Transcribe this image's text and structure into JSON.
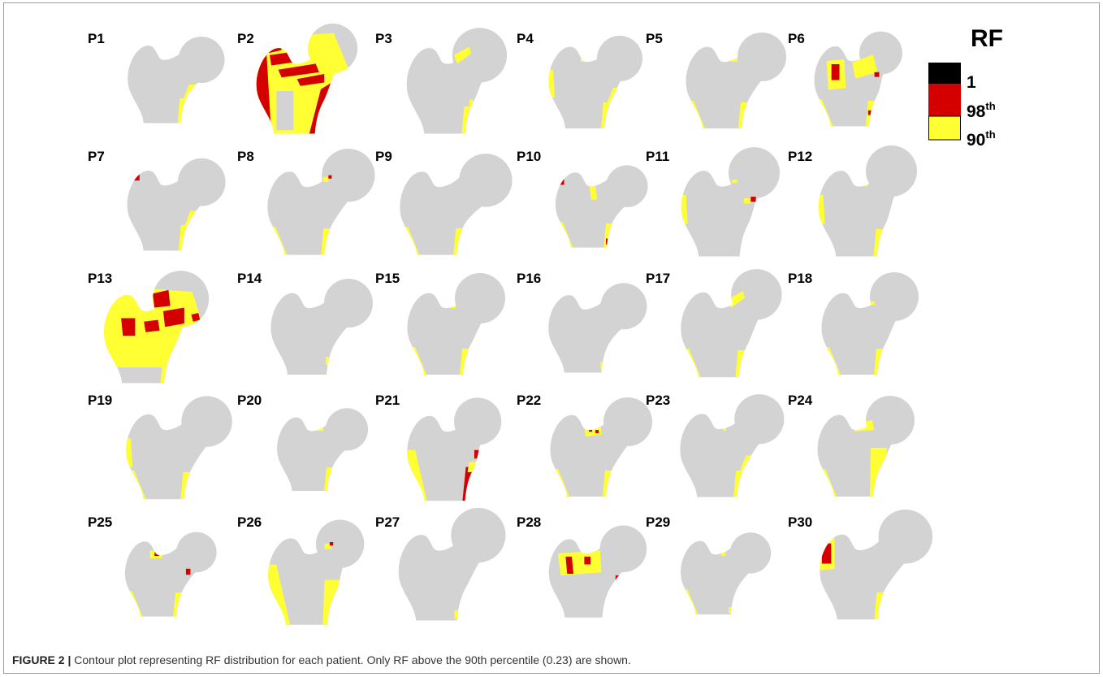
{
  "figure": {
    "panels": [
      {
        "label": "P1"
      },
      {
        "label": "P2"
      },
      {
        "label": "P3"
      },
      {
        "label": "P4"
      },
      {
        "label": "P5"
      },
      {
        "label": "P6"
      },
      {
        "label": "P7"
      },
      {
        "label": "P8"
      },
      {
        "label": "P9"
      },
      {
        "label": "P10"
      },
      {
        "label": "P11"
      },
      {
        "label": "P12"
      },
      {
        "label": "P13"
      },
      {
        "label": "P14"
      },
      {
        "label": "P15"
      },
      {
        "label": "P16"
      },
      {
        "label": "P17"
      },
      {
        "label": "P18"
      },
      {
        "label": "P19"
      },
      {
        "label": "P20"
      },
      {
        "label": "P21"
      },
      {
        "label": "P22"
      },
      {
        "label": "P23"
      },
      {
        "label": "P24"
      },
      {
        "label": "P25"
      },
      {
        "label": "P26"
      },
      {
        "label": "P27"
      },
      {
        "label": "P28"
      },
      {
        "label": "P29"
      },
      {
        "label": "P30"
      }
    ]
  },
  "legend": {
    "title": "RF",
    "entries": [
      {
        "value": "1",
        "color": "#000000"
      },
      {
        "value": "98",
        "suffix": "th",
        "color": "#d40000"
      },
      {
        "value": "90",
        "suffix": "th",
        "color": "#ffff33"
      }
    ]
  },
  "caption": {
    "label": "FIGURE 2 |",
    "text": "Contour plot representing RF distribution for each patient. Only RF above the 90th percentile (0.23) are shown."
  },
  "colors": {
    "bone": "#d3d3d3",
    "rf_98th": "#d40000",
    "rf_90th": "#ffff33",
    "rf_max": "#000000"
  }
}
